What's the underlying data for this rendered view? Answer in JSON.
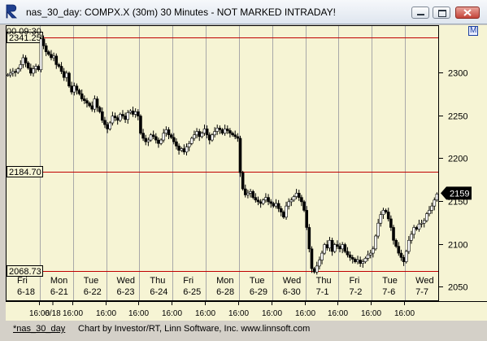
{
  "window": {
    "title": "nas_30_day: COMPX.X (30m) 30 Minutes - NOT MARKED INTRADAY!",
    "icon": "R-logo-icon"
  },
  "chart_header": {
    "start_label": "00  09:30",
    "m_marker": "M"
  },
  "reference_lines": [
    {
      "label": "2341.25",
      "value": 2341.25
    },
    {
      "label": "2184.70",
      "value": 2184.7
    },
    {
      "label": "2068.73",
      "value": 2068.73
    }
  ],
  "last_price_label": "2159",
  "status": {
    "left": "*nas_30_day",
    "right": "Chart by Investor/RT, Linn Software, Inc. www.linnsoft.com"
  },
  "chart_data": {
    "type": "candlestick",
    "title": "",
    "ylim": [
      2035,
      2355
    ],
    "y_ticks": [
      2300,
      2250,
      2200,
      2150,
      2100,
      2050
    ],
    "days": [
      {
        "dow": "Fri",
        "date": "6-18"
      },
      {
        "dow": "Mon",
        "date": "6-21"
      },
      {
        "dow": "Tue",
        "date": "6-22"
      },
      {
        "dow": "Wed",
        "date": "6-23"
      },
      {
        "dow": "Thu",
        "date": "6-24"
      },
      {
        "dow": "Fri",
        "date": "6-25"
      },
      {
        "dow": "Mon",
        "date": "6-28"
      },
      {
        "dow": "Tue",
        "date": "6-29"
      },
      {
        "dow": "Wed",
        "date": "6-30"
      },
      {
        "dow": "Thu",
        "date": "7-1"
      },
      {
        "dow": "Fri",
        "date": "7-2"
      },
      {
        "dow": "Tue",
        "date": "7-6"
      },
      {
        "dow": "Wed",
        "date": "7-7"
      }
    ],
    "time_labels": [
      "6/18",
      "16:00",
      "16:00",
      "16:00",
      "16:00",
      "16:00",
      "16:00",
      "16:00",
      "16:00",
      "16:00",
      "16:00",
      "16:00",
      "16:00"
    ],
    "closes_by_day": [
      [
        2298,
        2300,
        2302,
        2301,
        2305,
        2310,
        2318,
        2312,
        2306,
        2300,
        2305,
        2308,
        2304
      ],
      [
        2340,
        2332,
        2325,
        2322,
        2318,
        2320,
        2310,
        2308,
        2302,
        2295,
        2300,
        2285,
        2278
      ],
      [
        2285,
        2280,
        2276,
        2270,
        2268,
        2265,
        2262,
        2258,
        2270,
        2260,
        2255,
        2245,
        2240
      ],
      [
        2235,
        2242,
        2250,
        2248,
        2245,
        2252,
        2250,
        2246,
        2254,
        2256,
        2252,
        2255,
        2250
      ],
      [
        2230,
        2224,
        2220,
        2222,
        2228,
        2226,
        2222,
        2218,
        2222,
        2230,
        2234,
        2228,
        2225
      ],
      [
        2220,
        2215,
        2210,
        2212,
        2208,
        2214,
        2218,
        2224,
        2228,
        2232,
        2226,
        2230,
        2235
      ],
      [
        2228,
        2222,
        2228,
        2232,
        2236,
        2234,
        2230,
        2235,
        2233,
        2230,
        2228,
        2226,
        2224
      ],
      [
        2184,
        2165,
        2158,
        2160,
        2162,
        2155,
        2152,
        2150,
        2148,
        2152,
        2155,
        2150,
        2148
      ],
      [
        2145,
        2148,
        2142,
        2138,
        2132,
        2145,
        2150,
        2152,
        2156,
        2160,
        2155,
        2150,
        2140
      ],
      [
        2120,
        2095,
        2072,
        2068,
        2075,
        2082,
        2090,
        2100,
        2096,
        2105,
        2092,
        2100,
        2098
      ],
      [
        2095,
        2100,
        2092,
        2088,
        2085,
        2083,
        2080,
        2082,
        2078,
        2080,
        2084,
        2088,
        2090
      ],
      [
        2095,
        2110,
        2125,
        2135,
        2140,
        2138,
        2130,
        2120,
        2105,
        2098,
        2090,
        2085,
        2080
      ],
      [
        2092,
        2105,
        2112,
        2120,
        2118,
        2124,
        2125,
        2128,
        2136,
        2140,
        2145,
        2152,
        2159
      ]
    ]
  }
}
